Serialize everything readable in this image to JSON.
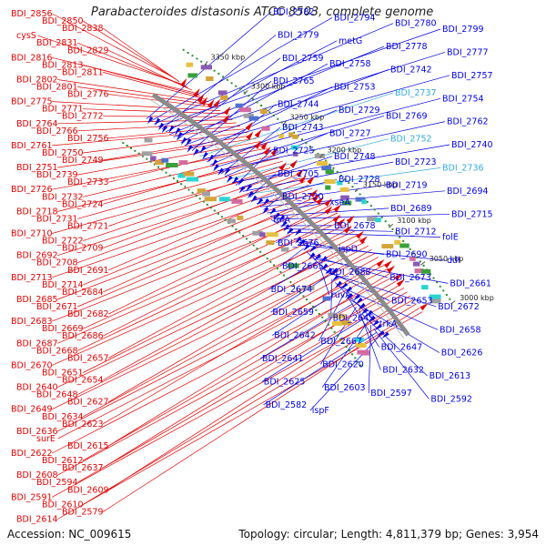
{
  "title": "Parabacteroides distasonis ATCC 8503, complete genome",
  "accession": "Accession: NC_009615",
  "topology": "Topology: circular; Length: 4,811,379 bp; Genes: 3,954",
  "colors": {
    "forward": "#e00000",
    "reverse": "#0000e0",
    "highlight": "#33aadd",
    "backbone": "#8a8a8a",
    "rna": "#2a8a2a"
  },
  "positions": [
    {
      "label": "3350 kbp"
    },
    {
      "label": "3300 kbp"
    },
    {
      "label": "3250 kbp"
    },
    {
      "label": "3200 kbp"
    },
    {
      "label": "3150 kbp"
    },
    {
      "label": "3100 kbp"
    },
    {
      "label": "3050 kbp"
    },
    {
      "label": "3000 kbp"
    }
  ],
  "forward_genes": [
    "BDI_2856",
    "BDI_2850",
    "BDI_2838",
    "cysS",
    "BDI_2831",
    "BDI_2829",
    "BDI_2816",
    "BDI_2813",
    "BDI_2811",
    "BDI_2802",
    "BDI_2801",
    "BDI_2776",
    "BDI_2775",
    "BDI_2771",
    "BDI_2772",
    "BDI_2764",
    "BDI_2766",
    "BDI_2756",
    "BDI_2761",
    "BDI_2750",
    "BDI_2749",
    "BDI_2751",
    "BDI_2739",
    "BDI_2733",
    "BDI_2726",
    "BDI_2732",
    "BDI_2724",
    "BDI_2718",
    "BDI_2731",
    "BDI_2721",
    "BDI_2710",
    "BDI_2722",
    "BDI_2709",
    "BDI_2692",
    "BDI_2708",
    "BDI_2691",
    "BDI_2713",
    "BDI_2714",
    "BDI_2684",
    "BDI_2685",
    "BDI_2671",
    "BDI_2682",
    "BDI_2683",
    "BDI_2669",
    "BDI_2686",
    "BDI_2687",
    "BDI_2668",
    "BDI_2657",
    "BDI_2670",
    "BDI_2651",
    "BDI_2654",
    "BDI_2640",
    "BDI_2648",
    "BDI_2627",
    "BDI_2649",
    "BDI_2634",
    "BDI_2623",
    "BDI_2636",
    "surE",
    "BDI_2615",
    "BDI_2622",
    "BDI_2612",
    "BDI_2637",
    "BDI_2608",
    "BDI_2594",
    "BDI_2609",
    "BDI_2591",
    "BDI_2610",
    "BDI_2579",
    "BDI_2614"
  ],
  "reverse_genes": [
    "BDI_2782",
    "BDI_2794",
    "BDI_2780",
    "BDI_2799",
    "BDI_2779",
    "metG",
    "BDI_2778",
    "BDI_2777",
    "BDI_2759",
    "BDI_2758",
    "BDI_2742",
    "BDI_2757",
    "BDI_2765",
    "BDI_2753",
    "BDI_2737",
    "BDI_2754",
    "BDI_2744",
    "BDI_2729",
    "BDI_2769",
    "BDI_2762",
    "BDI_2743",
    "BDI_2727",
    "BDI_2752",
    "BDI_2740",
    "BDI_2725",
    "BDI_2748",
    "BDI_2723",
    "BDI_2736",
    "BDI_2705",
    "BDI_2728",
    "BDI_2719",
    "BDI_2694",
    "BDI_2720",
    "xseA",
    "BDI_2689",
    "BDI_2715",
    "tpiA",
    "BDI_2678",
    "BDI_2712",
    "folE",
    "BDI_2676",
    "ispD",
    "BDI_2690",
    "ddl",
    "BDI_2665",
    "BDI_2688",
    "BDI_2673",
    "BDI_2661",
    "BDI_2674",
    "ruvA",
    "BDI_2653",
    "BDI_2672",
    "BDI_2659",
    "BDI_2645",
    "trkA",
    "BDI_2658",
    "BDI_2642",
    "BDI_2667",
    "BDI_2647",
    "BDI_2626",
    "BDI_2641",
    "BDI_2620",
    "BDI_2632",
    "BDI_2613",
    "BDI_2625",
    "BDI_2603",
    "BDI_2597",
    "BDI_2592",
    "BDI_2582",
    "ispF"
  ]
}
